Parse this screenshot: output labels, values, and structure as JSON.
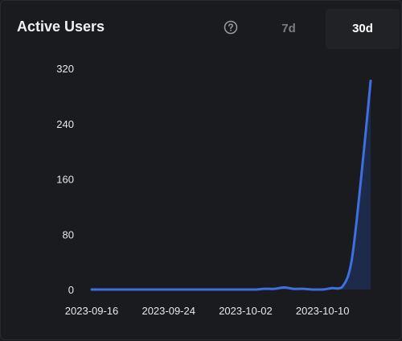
{
  "header": {
    "title": "Active Users",
    "help_icon": "question-circle-icon",
    "tabs": [
      {
        "label": "7d",
        "selected": false
      },
      {
        "label": "30d",
        "selected": true
      }
    ]
  },
  "colors": {
    "line": "#3f6fe0",
    "area": "#1d2a4a",
    "tab_selected_bg": "#202226"
  },
  "chart_data": {
    "type": "area",
    "title": "Active Users",
    "xlabel": "",
    "ylabel": "",
    "ylim": [
      0,
      320
    ],
    "yticks": [
      0,
      80,
      160,
      240,
      320
    ],
    "xticks": [
      "2023-09-16",
      "2023-09-24",
      "2023-10-02",
      "2023-10-10"
    ],
    "grid": false,
    "x": [
      "2023-09-16",
      "2023-09-17",
      "2023-09-18",
      "2023-09-19",
      "2023-09-20",
      "2023-09-21",
      "2023-09-22",
      "2023-09-23",
      "2023-09-24",
      "2023-09-25",
      "2023-09-26",
      "2023-09-27",
      "2023-09-28",
      "2023-09-29",
      "2023-09-30",
      "2023-10-01",
      "2023-10-02",
      "2023-10-03",
      "2023-10-04",
      "2023-10-05",
      "2023-10-06",
      "2023-10-07",
      "2023-10-08",
      "2023-10-09",
      "2023-10-10",
      "2023-10-11",
      "2023-10-12",
      "2023-10-13",
      "2023-10-14",
      "2023-10-15"
    ],
    "series": [
      {
        "values": [
          0,
          0,
          0,
          0,
          0,
          0,
          0,
          0,
          0,
          0,
          0,
          0,
          0,
          0,
          0,
          0,
          0,
          0,
          1,
          1,
          3,
          1,
          1,
          0,
          0,
          2,
          3,
          40,
          160,
          302
        ]
      }
    ]
  }
}
